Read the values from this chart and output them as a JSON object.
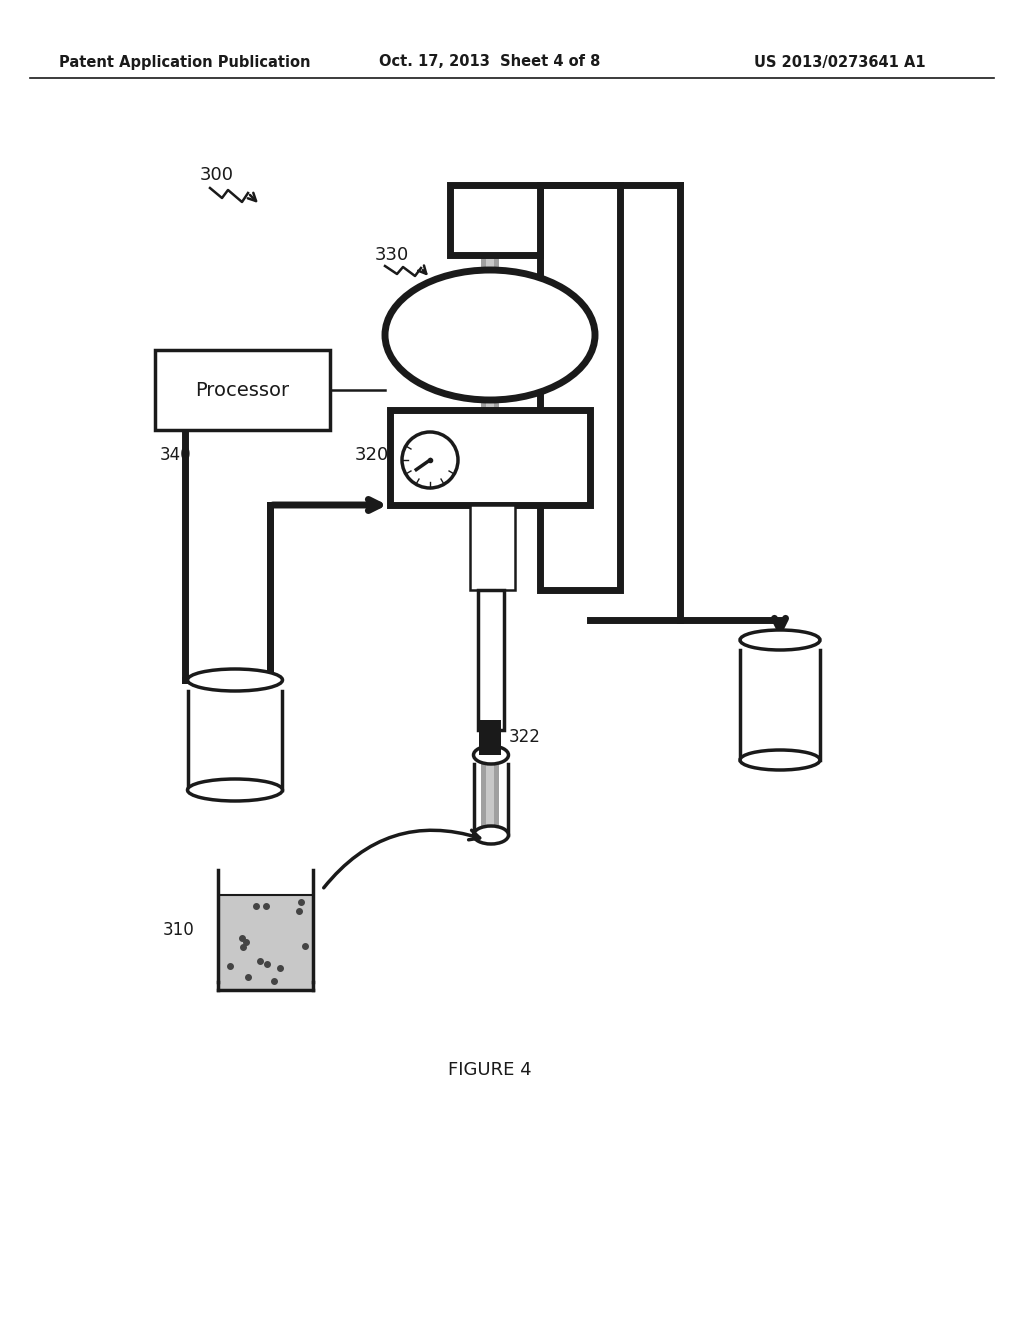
{
  "bg_color": "#ffffff",
  "header_left": "Patent Application Publication",
  "header_center": "Oct. 17, 2013  Sheet 4 of 8",
  "header_right": "US 2013/0273641 A1",
  "figure_label": "FIGURE 4",
  "label_300": "300",
  "label_330": "330",
  "label_320": "320",
  "label_322": "322",
  "label_340": "340",
  "label_310": "310",
  "processor_text": "Processor"
}
